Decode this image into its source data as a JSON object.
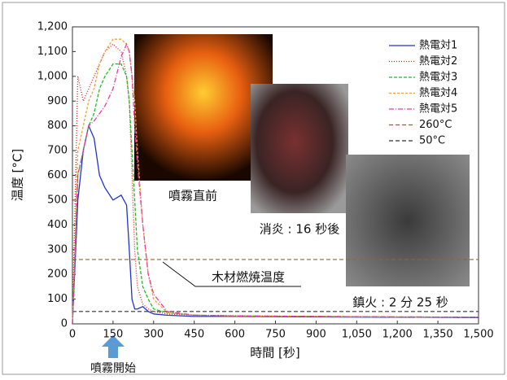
{
  "chart_data": {
    "type": "line",
    "y_label": "温度 [°C]",
    "x_label": "時間 [秒]",
    "x": [
      0,
      20,
      40,
      60,
      80,
      100,
      120,
      150,
      180,
      200,
      210,
      220,
      230,
      240,
      260,
      280,
      300,
      350,
      450,
      600,
      900,
      1200,
      1500
    ],
    "series": [
      {
        "name": "熱電対1",
        "color": "#2233cc",
        "dash": "none",
        "values": [
          0,
          500,
          700,
          800,
          750,
          600,
          550,
          500,
          520,
          480,
          300,
          100,
          60,
          60,
          70,
          50,
          40,
          35,
          30,
          30,
          28,
          27,
          25
        ]
      },
      {
        "name": "熱電対2",
        "color": "#e02020",
        "dash": "1,2",
        "values": [
          0,
          1000,
          900,
          950,
          1000,
          1050,
          1100,
          1130,
          1100,
          1000,
          900,
          600,
          300,
          150,
          80,
          60,
          50,
          40,
          35,
          33,
          30,
          28,
          27
        ]
      },
      {
        "name": "熱電対3",
        "color": "#22bb22",
        "dash": "4,2",
        "values": [
          0,
          600,
          700,
          800,
          850,
          950,
          1000,
          1050,
          1050,
          1000,
          900,
          700,
          500,
          300,
          150,
          100,
          60,
          45,
          35,
          32,
          30,
          28,
          27
        ]
      },
      {
        "name": "熱電対4",
        "color": "#f0a030",
        "dash": "3,2",
        "values": [
          0,
          700,
          800,
          900,
          950,
          1050,
          1100,
          1150,
          1150,
          1130,
          1100,
          1000,
          900,
          700,
          400,
          200,
          100,
          45,
          35,
          32,
          30,
          28,
          27
        ]
      },
      {
        "name": "熱電対5",
        "color": "#e040a0",
        "dash": "6,2,1,2",
        "values": [
          0,
          600,
          700,
          800,
          820,
          850,
          880,
          950,
          1080,
          1130,
          1100,
          1000,
          800,
          650,
          400,
          200,
          120,
          50,
          35,
          32,
          30,
          28,
          27
        ]
      }
    ],
    "reference_lines": [
      {
        "name": "260°C",
        "value": 260,
        "color": "#a06020",
        "dash": "5,3"
      },
      {
        "name": "50°C",
        "value": 50,
        "color": "#333333",
        "dash": "5,3"
      }
    ],
    "xlim": [
      0,
      1500
    ],
    "xticks": [
      0,
      150,
      300,
      450,
      600,
      750,
      900,
      {
        "value": 1050,
        "label": "1,050"
      },
      {
        "value": 1200,
        "label": "1,200"
      },
      {
        "value": 1350,
        "label": "1,350"
      },
      {
        "value": 1500,
        "label": "1,500"
      }
    ],
    "ylim": [
      0,
      1200
    ],
    "yticks": [
      0,
      100,
      200,
      300,
      400,
      500,
      600,
      700,
      800,
      900,
      {
        "value": 1000,
        "label": "1,000"
      },
      {
        "value": 1100,
        "label": "1,100"
      },
      {
        "value": 1200,
        "label": "1,200"
      }
    ],
    "annotations": {
      "burn_temp": "木材燃焼温度",
      "photo1": "噴霧直前",
      "photo2": "消炎 : 16 秒後",
      "photo3": "鎮火 : 2 分 25 秒",
      "spray_start": "噴霧開始"
    }
  }
}
